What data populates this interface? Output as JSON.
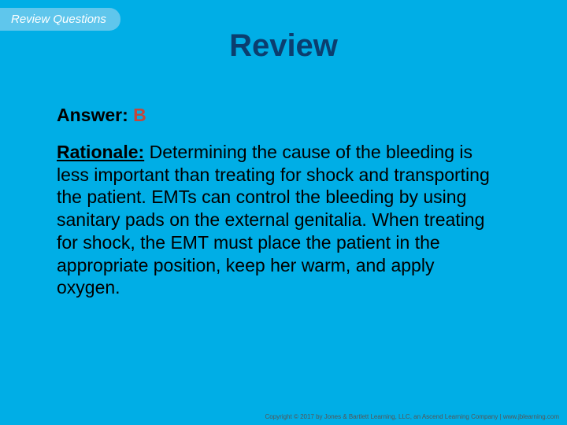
{
  "colors": {
    "slide_background": "#00aee6",
    "tab_background": "#5fc6ec",
    "tab_text": "#ffffff",
    "title_text": "#0b3e6f",
    "answer_label": "#000000",
    "answer_letter": "#c4473b",
    "rationale_label": "#000000",
    "body_text": "#000000",
    "copyright_text": "#555555"
  },
  "tab": {
    "label": "Review Questions",
    "fontsize": 15
  },
  "title": {
    "text": "Review",
    "fontsize": 40
  },
  "answer": {
    "label": "Answer:",
    "letter": "B"
  },
  "rationale": {
    "label": "Rationale:",
    "text": " Determining the cause of the bleeding is less important than treating for shock and transporting the patient. EMTs can control the bleeding by using sanitary pads on the external genitalia. When treating for shock, the EMT must place the patient in the appropriate position, keep her warm, and apply oxygen."
  },
  "copyright": "Copyright © 2017 by Jones & Bartlett Learning, LLC, an Ascend Learning Company | www.jblearning.com",
  "body_fontsize": 23
}
